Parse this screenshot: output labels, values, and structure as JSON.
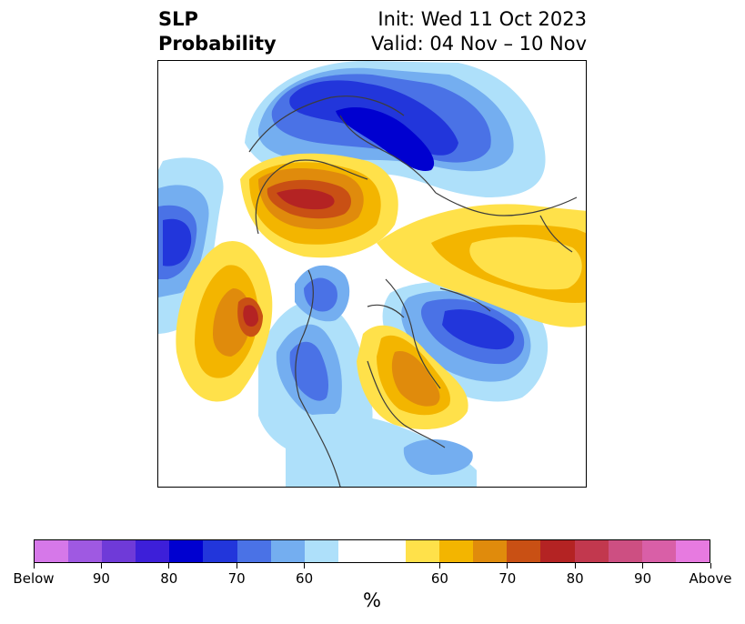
{
  "title": {
    "left_line1": "SLP",
    "left_line2": "Probability",
    "right_line1": "Init: Wed 11 Oct 2023",
    "right_line2": "Valid: 04 Nov – 10 Nov"
  },
  "colorbar": {
    "colors": [
      "#d678e9",
      "#9f59e2",
      "#6f3ad8",
      "#3d1fd9",
      "#0000d0",
      "#2236db",
      "#4a72e6",
      "#74aef0",
      "#aee0fa",
      "#ffffff",
      "#ffffff",
      "#ffe14a",
      "#f3b500",
      "#e08b0c",
      "#c95014",
      "#b42323",
      "#c2384e",
      "#cd4f82",
      "#d95fa7",
      "#e77ae0"
    ],
    "tick_labels": [
      "Below",
      "90",
      "80",
      "70",
      "60",
      "60",
      "70",
      "80",
      "90",
      "Above"
    ],
    "unit": "%"
  },
  "colors": {
    "below_light": "#aee0fa",
    "below_mid": "#74aef0",
    "below_strong": "#4a72e6",
    "below_deep": "#2236db",
    "below_deepest": "#0000d0",
    "above_light": "#ffe14a",
    "above_mid": "#f3b500",
    "above_strong": "#e08b0c",
    "above_deep": "#c95014",
    "above_deepest": "#b42323",
    "coastline": "#3c3c3c"
  }
}
